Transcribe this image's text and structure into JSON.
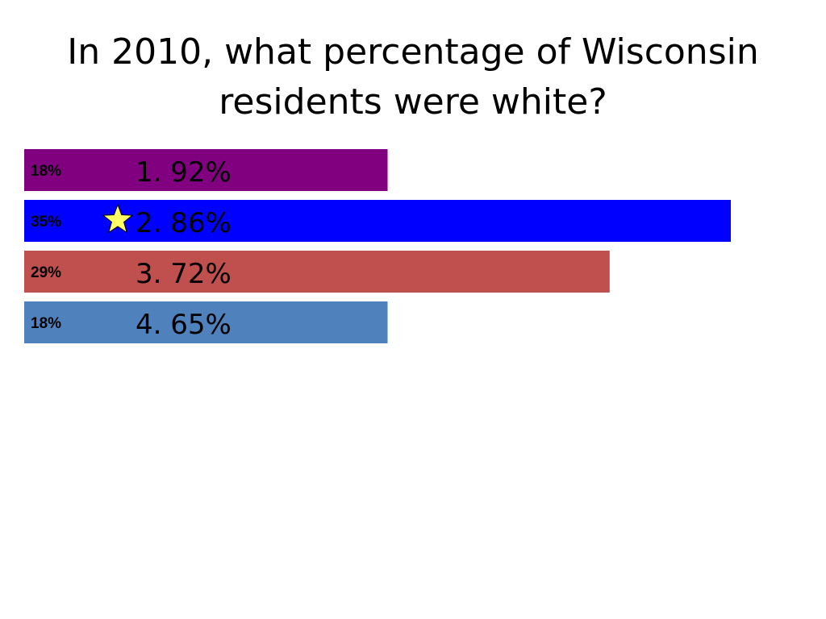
{
  "title_lines": [
    "In 2010, what percentage of Wisconsin",
    "residents were white?"
  ],
  "chart_data": {
    "type": "bar",
    "title": "In 2010, what percentage of Wisconsin residents were white?",
    "categories": [
      "1.  92%",
      "2.  86%",
      "3.  72%",
      "4.  65%"
    ],
    "values": [
      18,
      35,
      29,
      18
    ],
    "value_labels": [
      "18%",
      "35%",
      "29%",
      "18%"
    ],
    "colors": [
      "#800080",
      "#0000FF",
      "#C0504D",
      "#4F81BD"
    ],
    "xlim": [
      0,
      35
    ],
    "correct_index": 1,
    "correct_marker": "star-icon",
    "marker_color": "#FFFF66",
    "grid": false,
    "orientation": "horizontal"
  }
}
